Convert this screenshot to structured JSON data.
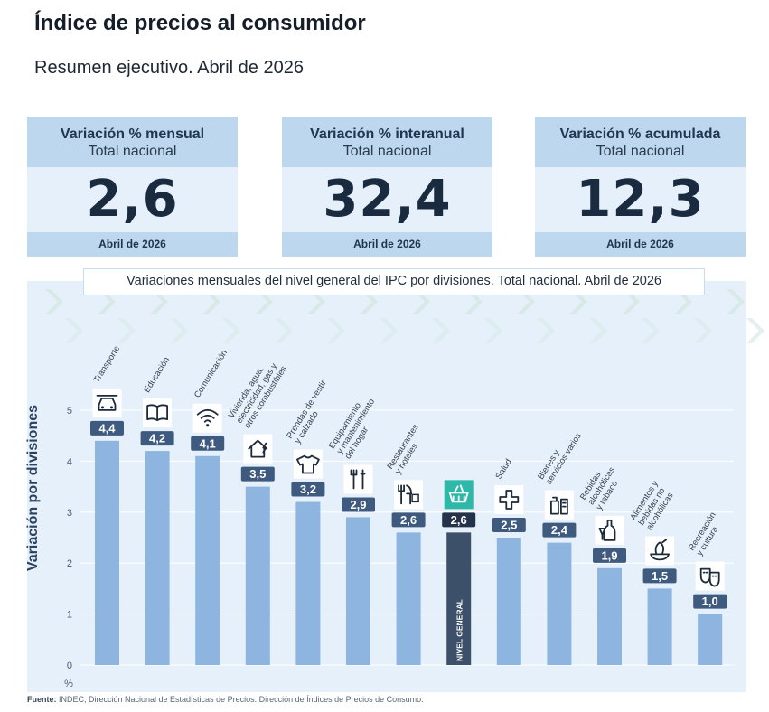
{
  "header": {
    "title": "Índice de precios al consumidor",
    "subtitle": "Resumen ejecutivo. Abril de 2026"
  },
  "cards": [
    {
      "title": "Variación % mensual",
      "scope": "Total nacional",
      "value": "2,6",
      "period": "Abril de 2026"
    },
    {
      "title": "Variación % interanual",
      "scope": "Total nacional",
      "value": "32,4",
      "period": "Abril de 2026"
    },
    {
      "title": "Variación % acumulada",
      "scope": "Total nacional",
      "value": "12,3",
      "period": "Abril de 2026"
    }
  ],
  "chart_data": {
    "type": "bar",
    "title": "Variaciones mensuales del nivel general del IPC por divisiones. Total nacional. Abril de 2026",
    "ylabel": "Variación por divisiones",
    "yunit": "%",
    "ylim": [
      0,
      5
    ],
    "yticks": [
      "0",
      "1",
      "2",
      "3",
      "4",
      "5"
    ],
    "grid": true,
    "categories": [
      {
        "label": [
          "Transporte"
        ],
        "icon": "car-icon"
      },
      {
        "label": [
          "Educación"
        ],
        "icon": "book-icon"
      },
      {
        "label": [
          "Comunicación"
        ],
        "icon": "wifi-icon"
      },
      {
        "label": [
          "Vivienda, agua,",
          "electricidad, gas y",
          "otros combustibles"
        ],
        "icon": "house-icon"
      },
      {
        "label": [
          "Prendas de vestir",
          "y calzado"
        ],
        "icon": "shirt-icon"
      },
      {
        "label": [
          "Equipamiento",
          "y mantenimiento",
          "del hogar"
        ],
        "icon": "tools-icon"
      },
      {
        "label": [
          "Restaurantes",
          "y hoteles"
        ],
        "icon": "restaurant-icon"
      },
      {
        "label": [
          "NIVEL GENERAL"
        ],
        "icon": "basket-icon",
        "highlight": true
      },
      {
        "label": [
          "Salud"
        ],
        "icon": "health-cross-icon"
      },
      {
        "label": [
          "Bienes y",
          "servicios varios"
        ],
        "icon": "products-icon"
      },
      {
        "label": [
          "Bebidas",
          "alcohólicas",
          "y tabaco"
        ],
        "icon": "bottle-icon"
      },
      {
        "label": [
          "Alimentos y",
          "bebidas no",
          "alcohólicas"
        ],
        "icon": "food-icon"
      },
      {
        "label": [
          "Recreación",
          "y cultura"
        ],
        "icon": "masks-icon"
      }
    ],
    "values": [
      4.4,
      4.2,
      4.1,
      3.5,
      3.2,
      2.9,
      2.6,
      2.6,
      2.5,
      2.4,
      1.9,
      1.5,
      1.0
    ],
    "value_labels": [
      "4,4",
      "4,2",
      "4,1",
      "3,5",
      "3,2",
      "2,9",
      "2,6",
      "2,6",
      "2,5",
      "2,4",
      "1,9",
      "1,5",
      "1,0"
    ],
    "colors": {
      "bar": "#8db5df",
      "highlight": "#3d506a",
      "label_bg": "#3e5a7e",
      "highlight_label_bg": "#24334a"
    }
  },
  "footer": {
    "source_label": "Fuente:",
    "source_text": " INDEC, Dirección Nacional de Estadísticas de Precios. Dirección de Índices de Precios de Consumo."
  }
}
